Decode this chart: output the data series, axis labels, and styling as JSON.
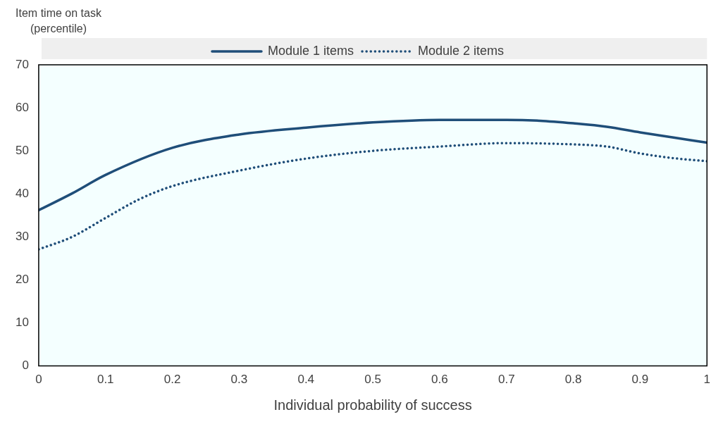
{
  "chart_data": {
    "type": "line",
    "xlabel": "Individual probability of success",
    "ylabel": "Item time on task\n(percentile)",
    "xlim": [
      0,
      1
    ],
    "xticks": [
      0,
      0.1,
      0.2,
      0.3,
      0.4,
      0.5,
      0.6,
      0.7,
      0.8,
      0.9,
      1
    ],
    "ylim": [
      0,
      70
    ],
    "yticks": [
      0,
      10,
      20,
      30,
      40,
      50,
      60,
      70
    ],
    "grid": false,
    "legend": "top",
    "marker": "none",
    "series": [
      {
        "name": "Module 1 items",
        "color": "#1f4e79",
        "line_style": "solid",
        "x": [
          0,
          0.05,
          0.1,
          0.2,
          0.3,
          0.4,
          0.5,
          0.6,
          0.7,
          0.75,
          0.8,
          0.85,
          0.9,
          0.95,
          1
        ],
        "values": [
          36.2,
          40.1,
          44.4,
          50.7,
          53.8,
          55.4,
          56.6,
          57.2,
          57.2,
          57.0,
          56.4,
          55.6,
          54.3,
          53.1,
          51.9
        ]
      },
      {
        "name": "Module 2 items",
        "color": "#1f4e79",
        "line_style": "dotted",
        "x": [
          0,
          0.05,
          0.1,
          0.15,
          0.2,
          0.3,
          0.4,
          0.5,
          0.6,
          0.7,
          0.8,
          0.85,
          0.9,
          0.95,
          1
        ],
        "values": [
          27.1,
          30.0,
          34.4,
          38.7,
          41.8,
          45.4,
          48.2,
          50.0,
          51.0,
          51.8,
          51.5,
          51.0,
          49.4,
          48.3,
          47.6
        ]
      }
    ]
  }
}
